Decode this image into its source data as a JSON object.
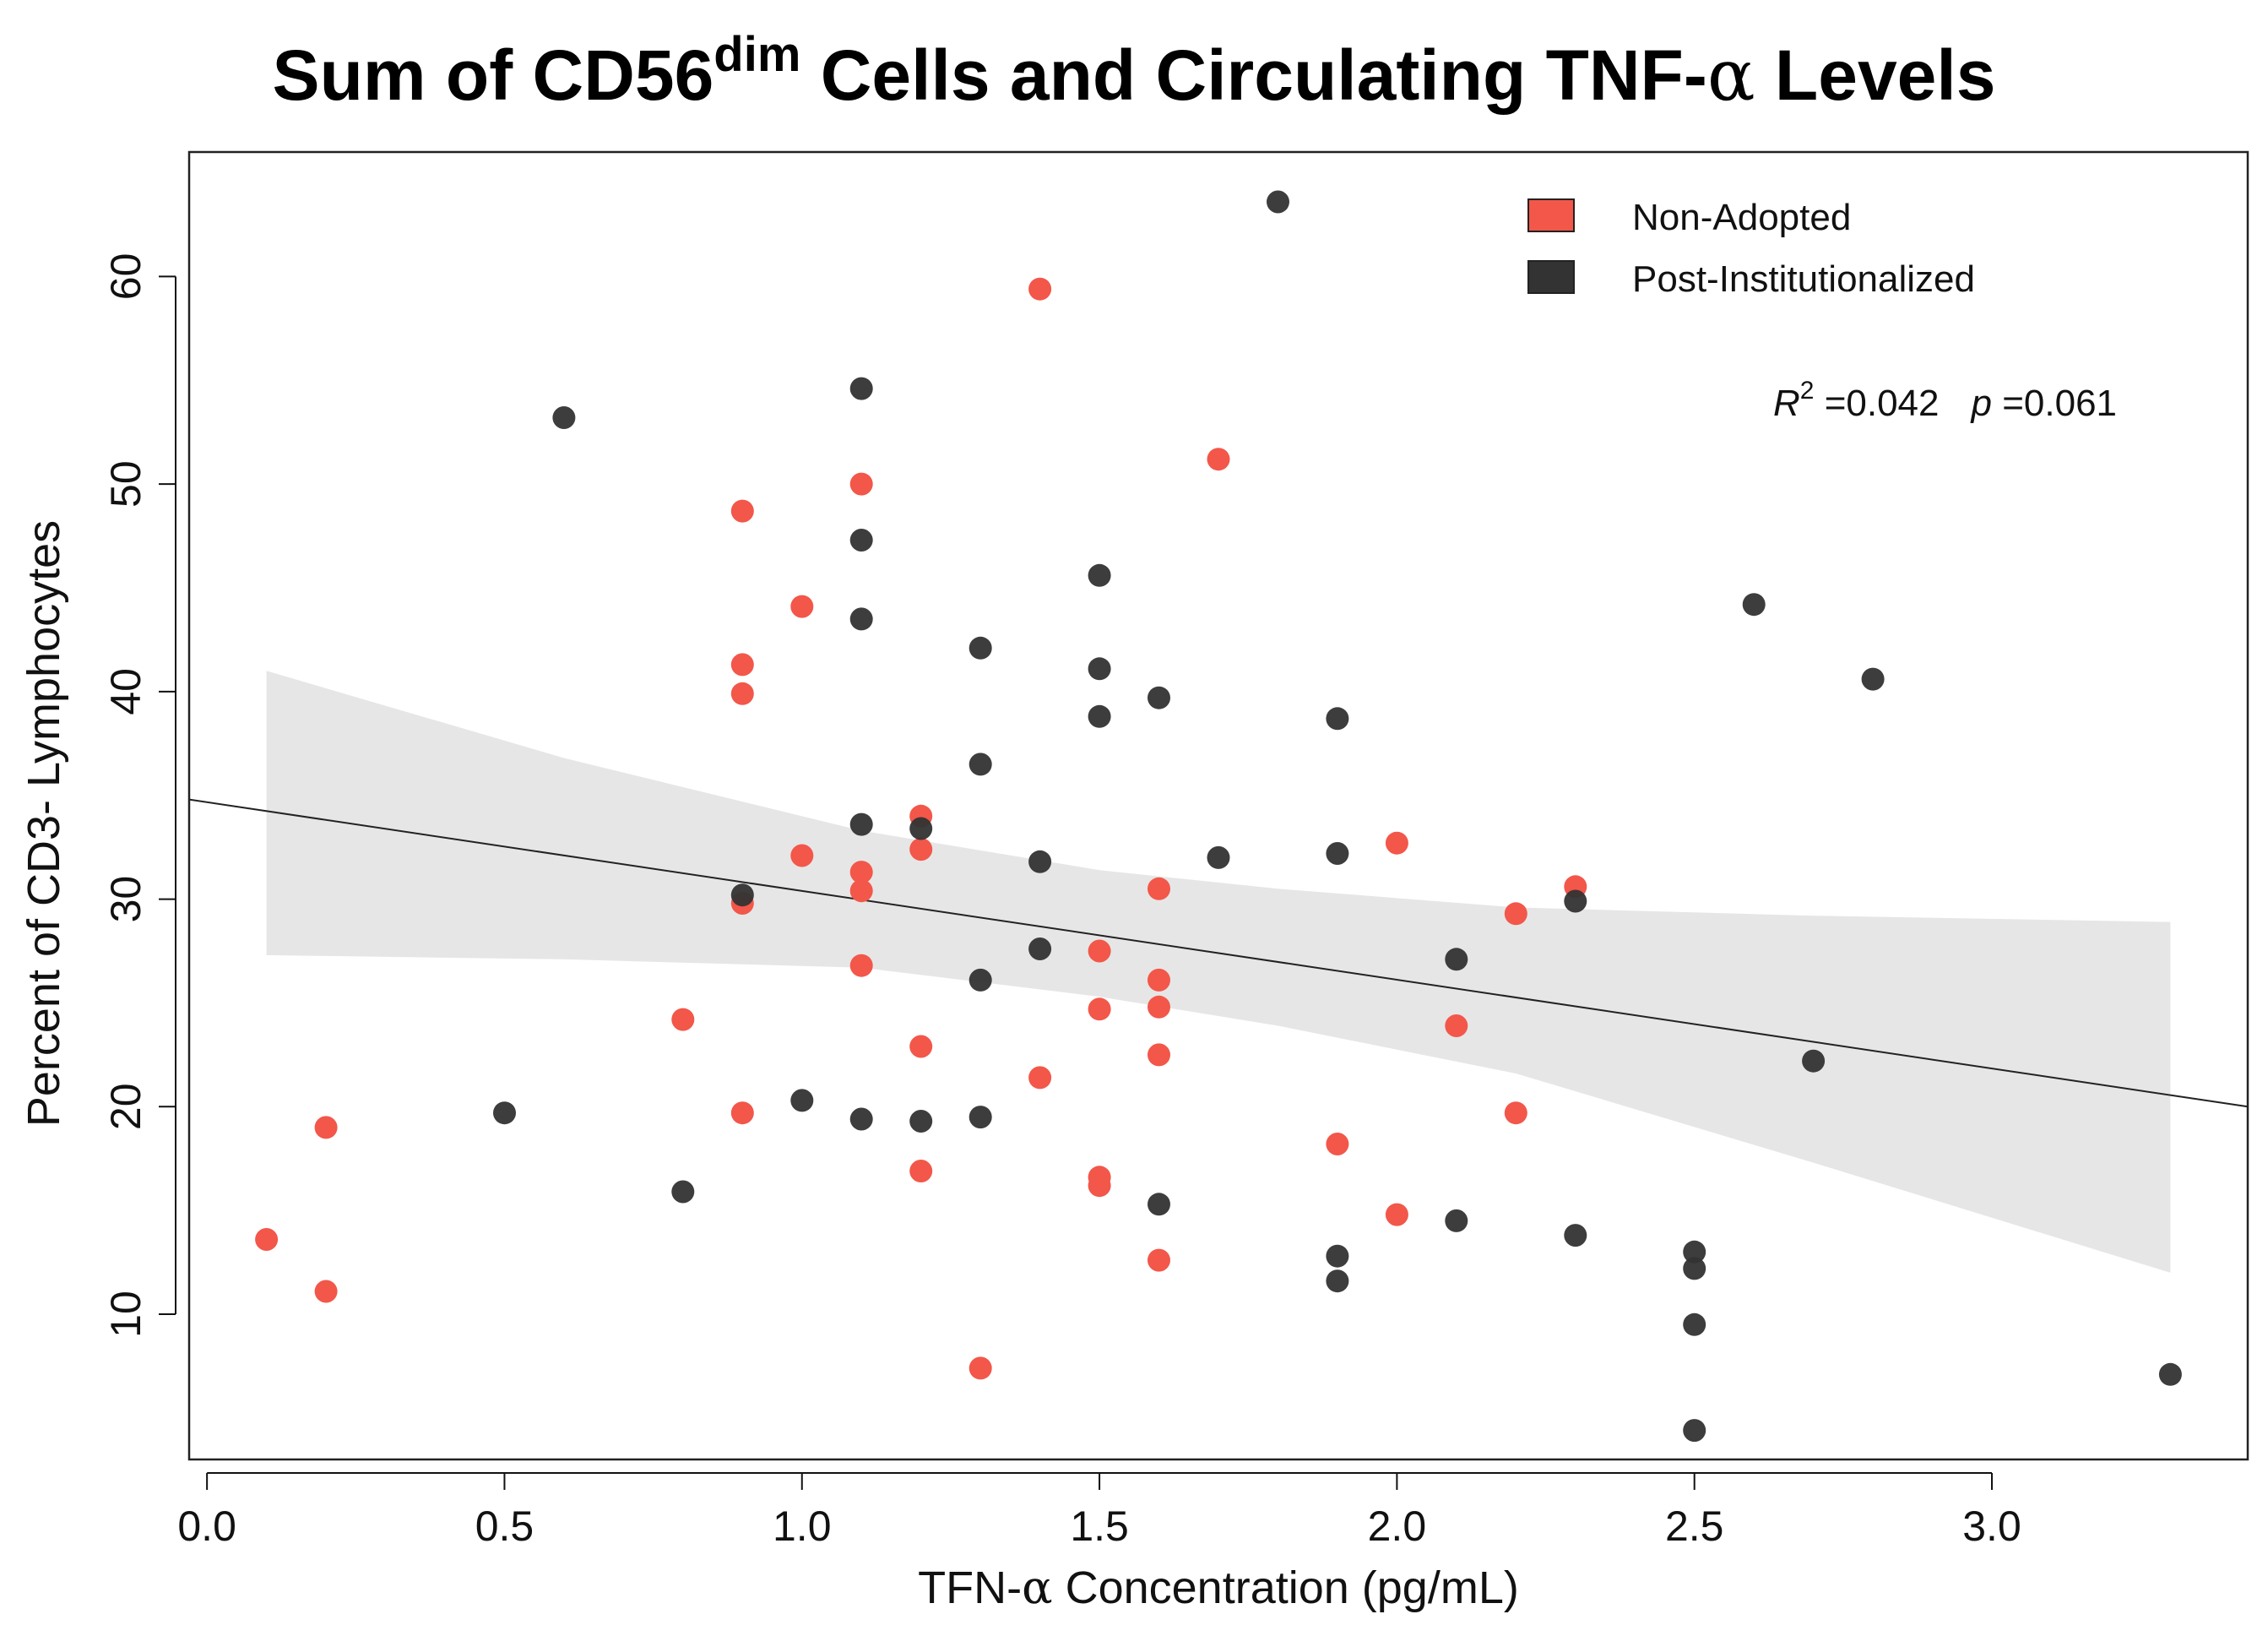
{
  "chart_data": {
    "type": "scatter",
    "title": {
      "prefix": "Sum of CD56",
      "superscript": "dim",
      "middle": " Cells and Circulating TNF-",
      "greek": "α",
      "suffix": " Levels"
    },
    "xlabel": {
      "prefix": "TFN-",
      "greek": "α",
      "suffix": " Concentration (pg/mL)"
    },
    "ylabel": "Percent of CD3- Lymphocytes",
    "xlim": [
      -0.03,
      3.43
    ],
    "ylim": [
      3,
      66
    ],
    "xticks": [
      0.0,
      0.5,
      1.0,
      1.5,
      2.0,
      2.5,
      3.0
    ],
    "xtick_labels": [
      "0.0",
      "0.5",
      "1.0",
      "1.5",
      "2.0",
      "2.5",
      "3.0"
    ],
    "yticks": [
      10,
      20,
      30,
      40,
      50,
      60
    ],
    "ytick_labels": [
      "10",
      "20",
      "30",
      "40",
      "50",
      "60"
    ],
    "grid": false,
    "legend_position": "top-right",
    "annotation": {
      "r_label": "R",
      "r_sup": "2",
      "r_value": " =0.042",
      "p_label": "p",
      "p_value": " =0.061"
    },
    "regression": {
      "line": [
        [
          -0.03,
          34.8
        ],
        [
          3.43,
          20.0
        ]
      ],
      "band": [
        {
          "x": 0.1,
          "lo": 27.3,
          "hi": 41.0
        },
        {
          "x": 0.6,
          "lo": 27.1,
          "hi": 36.8
        },
        {
          "x": 1.1,
          "lo": 26.7,
          "hi": 33.3
        },
        {
          "x": 1.5,
          "lo": 25.3,
          "hi": 31.4
        },
        {
          "x": 1.8,
          "lo": 23.9,
          "hi": 30.5
        },
        {
          "x": 2.2,
          "lo": 21.6,
          "hi": 29.6
        },
        {
          "x": 2.7,
          "lo": 17.3,
          "hi": 29.2
        },
        {
          "x": 3.3,
          "lo": 12.0,
          "hi": 28.9
        }
      ]
    },
    "series": [
      {
        "name": "Non-Adopted",
        "color": "#f2574a",
        "points": [
          [
            0.1,
            13.6
          ],
          [
            0.2,
            19.0
          ],
          [
            0.2,
            11.1
          ],
          [
            0.8,
            24.2
          ],
          [
            0.9,
            48.7
          ],
          [
            0.9,
            41.3
          ],
          [
            0.9,
            39.9
          ],
          [
            0.9,
            29.8
          ],
          [
            0.9,
            19.7
          ],
          [
            1.0,
            44.1
          ],
          [
            1.0,
            32.1
          ],
          [
            1.1,
            50.0
          ],
          [
            1.1,
            31.3
          ],
          [
            1.1,
            30.4
          ],
          [
            1.1,
            26.8
          ],
          [
            1.2,
            34.0
          ],
          [
            1.2,
            32.4
          ],
          [
            1.2,
            22.9
          ],
          [
            1.2,
            16.9
          ],
          [
            1.3,
            7.4
          ],
          [
            1.4,
            59.4
          ],
          [
            1.4,
            21.4
          ],
          [
            1.5,
            27.5
          ],
          [
            1.5,
            24.7
          ],
          [
            1.5,
            16.6
          ],
          [
            1.5,
            16.2
          ],
          [
            1.6,
            30.5
          ],
          [
            1.6,
            26.1
          ],
          [
            1.6,
            24.8
          ],
          [
            1.6,
            22.5
          ],
          [
            1.6,
            12.6
          ],
          [
            1.7,
            51.2
          ],
          [
            1.9,
            18.2
          ],
          [
            2.0,
            32.7
          ],
          [
            2.0,
            14.8
          ],
          [
            2.1,
            23.9
          ],
          [
            2.2,
            29.3
          ],
          [
            2.2,
            19.7
          ],
          [
            2.3,
            30.6
          ]
        ]
      },
      {
        "name": "Post-Institutionalized",
        "color": "#333333",
        "points": [
          [
            0.5,
            19.7
          ],
          [
            0.6,
            53.2
          ],
          [
            0.8,
            15.9
          ],
          [
            0.9,
            30.2
          ],
          [
            1.0,
            20.3
          ],
          [
            1.1,
            54.6
          ],
          [
            1.1,
            47.3
          ],
          [
            1.1,
            43.5
          ],
          [
            1.1,
            33.6
          ],
          [
            1.1,
            19.4
          ],
          [
            1.2,
            33.4
          ],
          [
            1.2,
            19.3
          ],
          [
            1.3,
            42.1
          ],
          [
            1.3,
            36.5
          ],
          [
            1.3,
            26.1
          ],
          [
            1.3,
            19.5
          ],
          [
            1.4,
            31.8
          ],
          [
            1.4,
            27.6
          ],
          [
            1.5,
            45.6
          ],
          [
            1.5,
            41.1
          ],
          [
            1.5,
            38.8
          ],
          [
            1.6,
            39.7
          ],
          [
            1.6,
            15.3
          ],
          [
            1.7,
            32.0
          ],
          [
            1.8,
            63.6
          ],
          [
            1.9,
            38.7
          ],
          [
            1.9,
            32.2
          ],
          [
            1.9,
            12.8
          ],
          [
            1.9,
            11.6
          ],
          [
            2.1,
            27.1
          ],
          [
            2.1,
            14.5
          ],
          [
            2.3,
            29.9
          ],
          [
            2.3,
            13.8
          ],
          [
            2.5,
            13.0
          ],
          [
            2.5,
            12.2
          ],
          [
            2.5,
            9.5
          ],
          [
            2.5,
            4.4
          ],
          [
            2.6,
            44.2
          ],
          [
            2.7,
            22.2
          ],
          [
            2.8,
            40.6
          ],
          [
            3.3,
            7.1
          ]
        ]
      }
    ]
  }
}
